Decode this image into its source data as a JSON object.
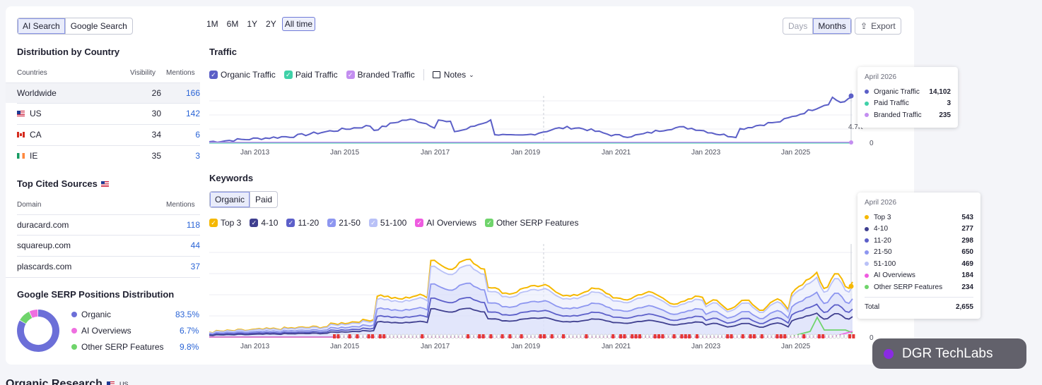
{
  "engine_tabs": [
    "AI Search",
    "Google Search"
  ],
  "distribution": {
    "title": "Distribution by Country",
    "headers": [
      "Countries",
      "Visibility",
      "Mentions"
    ],
    "rows": [
      {
        "country": "Worldwide",
        "flag": "",
        "visibility": "26",
        "mentions": "166"
      },
      {
        "country": "US",
        "flag": "us",
        "visibility": "30",
        "mentions": "142"
      },
      {
        "country": "CA",
        "flag": "ca",
        "visibility": "34",
        "mentions": "6"
      },
      {
        "country": "IE",
        "flag": "ie",
        "visibility": "35",
        "mentions": "3"
      }
    ]
  },
  "sources": {
    "title": "Top Cited Sources",
    "headers": [
      "Domain",
      "Mentions"
    ],
    "rows": [
      {
        "domain": "duracard.com",
        "mentions": "118"
      },
      {
        "domain": "squareup.com",
        "mentions": "44"
      },
      {
        "domain": "plascards.com",
        "mentions": "37"
      }
    ]
  },
  "serp": {
    "title": "Google SERP Positions Distribution",
    "items": [
      {
        "name": "Organic",
        "value": "83.5%",
        "pct": 83.5,
        "color": "#6c6fd8"
      },
      {
        "name": "AI Overviews",
        "value": "6.7%",
        "pct": 6.7,
        "color": "#ef6fe0"
      },
      {
        "name": "Other SERP Features",
        "value": "9.8%",
        "pct": 9.8,
        "color": "#6fd46b"
      }
    ]
  },
  "periods": [
    "1M",
    "6M",
    "1Y",
    "2Y",
    "All time"
  ],
  "granularity": [
    "Days",
    "Months"
  ],
  "export_label": "Export",
  "traffic": {
    "title": "Traffic",
    "legend": [
      {
        "name": "Organic Traffic",
        "color": "#5b5fc7"
      },
      {
        "name": "Paid Traffic",
        "color": "#3fd1a8"
      },
      {
        "name": "Branded Traffic",
        "color": "#c38ef0"
      }
    ],
    "notes_label": "Notes",
    "y_labels": [
      "4.7K",
      "0"
    ],
    "x_labels": [
      "Jan 2013",
      "Jan 2015",
      "Jan 2017",
      "Jan 2019",
      "Jan 2021",
      "Jan 2023",
      "Jan 2025"
    ],
    "tooltip": {
      "title": "April 2026",
      "rows": [
        {
          "name": "Organic Traffic",
          "value": "14,102",
          "color": "#5b5fc7"
        },
        {
          "name": "Paid Traffic",
          "value": "3",
          "color": "#3fd1a8"
        },
        {
          "name": "Branded Traffic",
          "value": "235",
          "color": "#c38ef0"
        }
      ]
    }
  },
  "keywords": {
    "title": "Keywords",
    "tabs": [
      "Organic",
      "Paid"
    ],
    "legend": [
      {
        "name": "Top 3",
        "color": "#f5b800"
      },
      {
        "name": "4-10",
        "color": "#3f3f8f"
      },
      {
        "name": "11-20",
        "color": "#5c5fc9"
      },
      {
        "name": "21-50",
        "color": "#8d96f0"
      },
      {
        "name": "51-100",
        "color": "#b9c1f7"
      },
      {
        "name": "AI Overviews",
        "color": "#ef5be0"
      },
      {
        "name": "Other SERP Features",
        "color": "#6fd46b"
      }
    ],
    "y_labels": [
      "0"
    ],
    "x_labels": [
      "Jan 2013",
      "Jan 2015",
      "Jan 2017",
      "Jan 2019",
      "Jan 2021",
      "Jan 2023",
      "Jan 2025"
    ],
    "tooltip": {
      "title": "April 2026",
      "rows": [
        {
          "name": "Top 3",
          "value": "543",
          "color": "#f5b800"
        },
        {
          "name": "4-10",
          "value": "277",
          "color": "#3f3f8f"
        },
        {
          "name": "11-20",
          "value": "298",
          "color": "#5c5fc9"
        },
        {
          "name": "21-50",
          "value": "650",
          "color": "#8d96f0"
        },
        {
          "name": "51-100",
          "value": "469",
          "color": "#b9c1f7"
        },
        {
          "name": "AI Overviews",
          "value": "184",
          "color": "#ef5be0"
        },
        {
          "name": "Other SERP Features",
          "value": "234",
          "color": "#6fd46b"
        }
      ],
      "total_label": "Total",
      "total_value": "2,655"
    }
  },
  "bottom_heading": "Organic Research",
  "bottom_flag_label": "US",
  "badge_label": "DGR TechLabs"
}
